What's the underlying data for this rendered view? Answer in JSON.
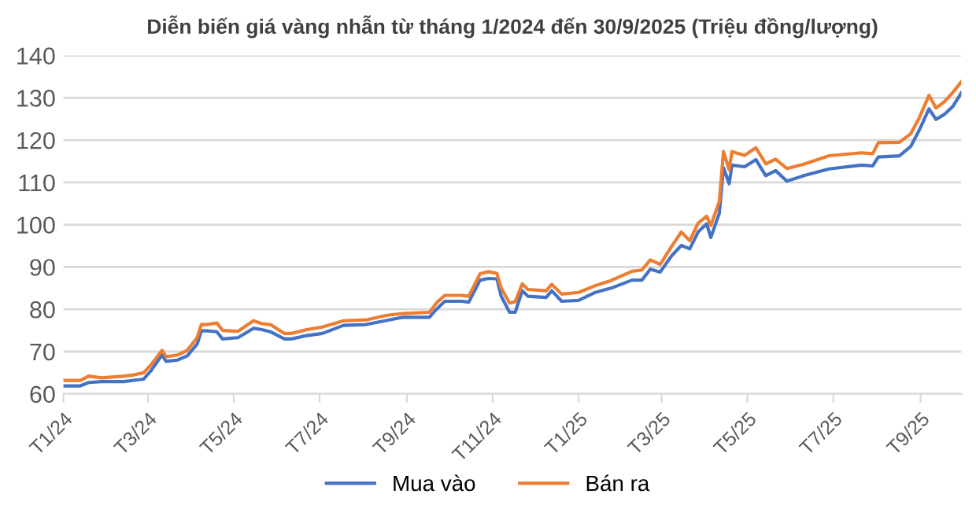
{
  "chart_data": {
    "type": "line",
    "title": "Diễn biến giá vàng nhẫn từ tháng 1/2024 đến 30/9/2025 (Triệu đồng/lượng)",
    "x": [
      "2024-01-01",
      "2024-01-13",
      "2024-01-19",
      "2024-01-28",
      "2024-02-13",
      "2024-02-20",
      "2024-02-27",
      "2024-03-03",
      "2024-03-07",
      "2024-03-11",
      "2024-03-14",
      "2024-03-22",
      "2024-03-29",
      "2024-04-05",
      "2024-04-08",
      "2024-04-12",
      "2024-04-19",
      "2024-04-23",
      "2024-05-04",
      "2024-05-15",
      "2024-05-21",
      "2024-05-27",
      "2024-06-06",
      "2024-06-11",
      "2024-06-22",
      "2024-07-03",
      "2024-07-18",
      "2024-08-03",
      "2024-08-18",
      "2024-08-29",
      "2024-09-17",
      "2024-09-22",
      "2024-09-28",
      "2024-10-10",
      "2024-10-15",
      "2024-10-23",
      "2024-10-29",
      "2024-11-04",
      "2024-11-07",
      "2024-11-13",
      "2024-11-17",
      "2024-11-22",
      "2024-11-26",
      "2024-12-09",
      "2024-12-13",
      "2024-12-20",
      "2025-01-01",
      "2025-01-13",
      "2025-01-24",
      "2025-02-08",
      "2025-02-15",
      "2025-02-21",
      "2025-02-28",
      "2025-03-08",
      "2025-03-15",
      "2025-03-21",
      "2025-03-27",
      "2025-04-02",
      "2025-04-05",
      "2025-04-11",
      "2025-04-14",
      "2025-04-18",
      "2025-04-20",
      "2025-04-29",
      "2025-05-07",
      "2025-05-14",
      "2025-05-21",
      "2025-05-29",
      "2025-06-10",
      "2025-06-28",
      "2025-07-21",
      "2025-07-29",
      "2025-08-02",
      "2025-08-17",
      "2025-08-25",
      "2025-08-31",
      "2025-09-07",
      "2025-09-12",
      "2025-09-18",
      "2025-09-24",
      "2025-09-30"
    ],
    "series": [
      {
        "name": "Mua vào",
        "color": "#4472c4",
        "values": [
          61.9,
          61.9,
          62.7,
          62.9,
          62.9,
          63.2,
          63.5,
          65.4,
          67.3,
          69.2,
          67.7,
          68,
          69,
          71.8,
          74.9,
          74.9,
          74.7,
          73,
          73.3,
          75.5,
          75.2,
          74.7,
          73,
          73,
          73.8,
          74.3,
          76.2,
          76.4,
          77.4,
          78.1,
          78.1,
          80,
          81.9,
          81.9,
          81.7,
          86.9,
          87.3,
          87.2,
          83.1,
          79.3,
          79.3,
          84.4,
          83.1,
          82.8,
          84.4,
          81.9,
          82.1,
          84,
          85,
          86.9,
          86.9,
          89.5,
          88.8,
          92.6,
          95.1,
          94.3,
          98.3,
          100.2,
          97,
          102.7,
          113.5,
          109.7,
          114.1,
          113.7,
          115.4,
          111.6,
          112.8,
          110.3,
          111.6,
          113.2,
          114.1,
          113.9,
          116,
          116.3,
          118.5,
          122.3,
          127.4,
          124.9,
          126.1,
          128,
          131.2
        ]
      },
      {
        "name": "Bán ra",
        "color": "#ed7d31",
        "values": [
          63.2,
          63.2,
          64.2,
          63.8,
          64.2,
          64.5,
          65,
          66.8,
          68.5,
          70.3,
          68.8,
          69.2,
          70.3,
          73.3,
          76.4,
          76.4,
          76.8,
          75,
          74.8,
          77.3,
          76.6,
          76.4,
          74.3,
          74.3,
          75.2,
          75.8,
          77.3,
          77.5,
          78.6,
          79,
          79.3,
          81.5,
          83.3,
          83.3,
          83.1,
          88.4,
          88.9,
          88.5,
          85,
          81.5,
          81.8,
          86,
          84.7,
          84.4,
          85.9,
          83.6,
          84,
          85.6,
          86.8,
          89,
          89.3,
          91.7,
          90.6,
          94.8,
          98.3,
          96.2,
          100.4,
          102,
          99.8,
          105.5,
          117.3,
          113,
          117.3,
          116.4,
          118.2,
          114.4,
          115.5,
          113.3,
          114.3,
          116.3,
          117,
          116.8,
          119.4,
          119.5,
          121.5,
          125.2,
          130.6,
          127.6,
          129.1,
          131.3,
          133.8
        ]
      }
    ],
    "xlim": [
      "2024-01-01",
      "2025-09-30"
    ],
    "xticks": [
      {
        "value": "2024-01-01",
        "label": "T1/24"
      },
      {
        "value": "2024-03-01",
        "label": "T3/24"
      },
      {
        "value": "2024-05-01",
        "label": "T5/24"
      },
      {
        "value": "2024-07-01",
        "label": "T7/24"
      },
      {
        "value": "2024-09-01",
        "label": "T9/24"
      },
      {
        "value": "2024-11-01",
        "label": "T11/24"
      },
      {
        "value": "2025-01-01",
        "label": "T1/25"
      },
      {
        "value": "2025-03-01",
        "label": "T3/25"
      },
      {
        "value": "2025-05-01",
        "label": "T5/25"
      },
      {
        "value": "2025-07-01",
        "label": "T7/25"
      },
      {
        "value": "2025-09-01",
        "label": "T9/25"
      }
    ],
    "ylim": [
      60,
      140
    ],
    "yticks": [
      60,
      70,
      80,
      90,
      100,
      110,
      120,
      130,
      140
    ],
    "grid": "y",
    "legend": "bottom",
    "marker": "none",
    "line_style": "solid"
  }
}
